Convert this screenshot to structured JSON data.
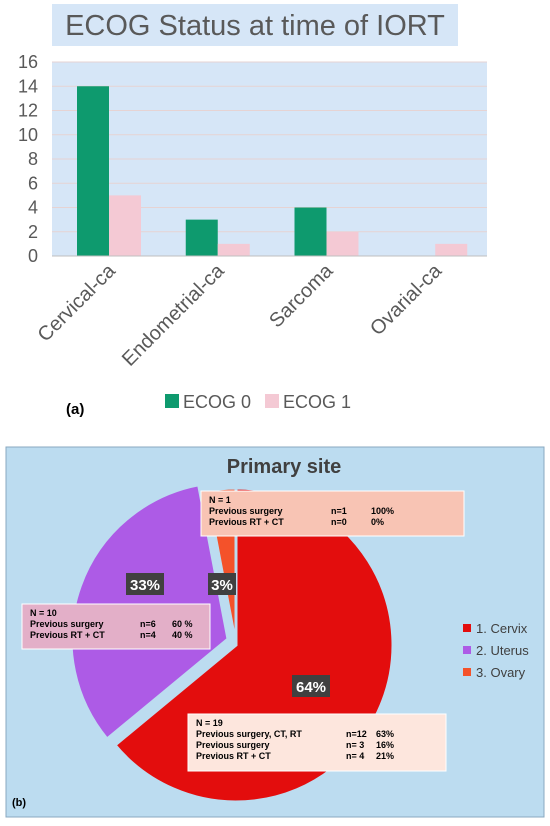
{
  "panel_a_label": "(a)",
  "panel_b_label": "(b)",
  "chart_data": [
    {
      "type": "bar",
      "title": "ECOG Status at time of IORT",
      "categories": [
        "Cervical-ca",
        "Endometrial-ca",
        "Sarcoma",
        "Ovarial-ca"
      ],
      "series": [
        {
          "name": "ECOG 0",
          "values": [
            14,
            3,
            4,
            0
          ],
          "color": "#0e9a6e"
        },
        {
          "name": "ECOG 1",
          "values": [
            5,
            1,
            2,
            1
          ],
          "color": "#f4c9d4"
        }
      ],
      "ylim": [
        0,
        16
      ],
      "yticks": [
        "0",
        "2",
        "4",
        "6",
        "8",
        "10",
        "12",
        "14",
        "16"
      ],
      "grid": true,
      "legend": "bottom",
      "plot_background": "#d6e6f7",
      "title_background": "#d6e6f7"
    },
    {
      "type": "pie",
      "title": "Primary site",
      "background": "#bcdcf0",
      "slices": [
        {
          "name": "1. Cervix",
          "value": 64,
          "label": "64%",
          "color": "#e30d0d"
        },
        {
          "name": "2. Uterus",
          "value": 33,
          "label": "33%",
          "color": "#ad5be6"
        },
        {
          "name": "3. Ovary",
          "value": 3,
          "label": "3%",
          "color": "#f4522a"
        }
      ],
      "legend": "right",
      "annotations": [
        {
          "slice": "3. Ovary",
          "color": "#f8c4b4",
          "lines": [
            [
              "N = 1",
              "",
              ""
            ],
            [
              "Previous surgery",
              "n=1",
              "100%"
            ],
            [
              "Previous RT + CT",
              "n=0",
              "0%"
            ]
          ]
        },
        {
          "slice": "2. Uterus",
          "color": "#e3afc8",
          "lines": [
            [
              "N = 10",
              "",
              ""
            ],
            [
              "Previous surgery",
              "n=6",
              "60 %"
            ],
            [
              "Previous RT + CT",
              "n=4",
              "40 %"
            ]
          ]
        },
        {
          "slice": "1. Cervix",
          "color": "#fde6dd",
          "lines": [
            [
              "N = 19",
              "",
              ""
            ],
            [
              "Previous surgery, CT, RT",
              "n=12",
              "63%"
            ],
            [
              "Previous surgery",
              "n= 3",
              "16%"
            ],
            [
              "Previous RT + CT",
              "n= 4",
              "21%"
            ]
          ]
        }
      ]
    }
  ]
}
